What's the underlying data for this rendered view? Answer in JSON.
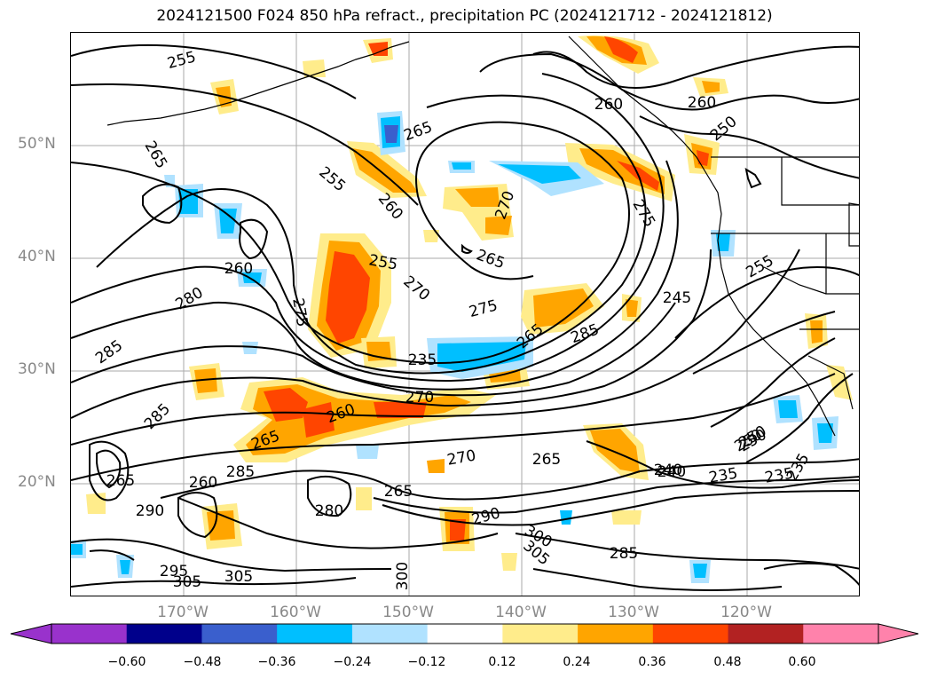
{
  "title": "2024121500 F024 850 hPa refract., precipitation PC (2024121712 - 2024121812)",
  "lat_labels": [
    "50°N",
    "40°N",
    "30°N",
    "20°N"
  ],
  "lon_labels": [
    "170°W",
    "160°W",
    "150°W",
    "140°W",
    "130°W",
    "120°W"
  ],
  "colorbar": {
    "ticks": [
      "−0.60",
      "−0.48",
      "−0.36",
      "−0.24",
      "−0.12",
      "0.12",
      "0.24",
      "0.36",
      "0.48",
      "0.60"
    ],
    "colors": [
      "#9932cc",
      "#00008b",
      "#3a5fcd",
      "#00bfff",
      "#b0e2ff",
      "#ffffff",
      "#ffec8b",
      "#ffa500",
      "#ff4500",
      "#b22222",
      "#ff82ab"
    ]
  },
  "contour_labels": [
    "255",
    "265",
    "255",
    "260",
    "265",
    "270",
    "265",
    "260",
    "250",
    "255",
    "270",
    "275",
    "280",
    "285",
    "285",
    "285",
    "275",
    "250",
    "235",
    "270",
    "265",
    "260",
    "265",
    "260",
    "275",
    "255",
    "245",
    "270",
    "265",
    "250",
    "235",
    "235",
    "240",
    "260",
    "285",
    "290",
    "295",
    "305",
    "305",
    "280",
    "265",
    "290",
    "300",
    "305",
    "300",
    "285",
    "265",
    "260",
    "250",
    "240",
    "235"
  ],
  "colors": {
    "grid": "#aaaaaa",
    "coast": "#000000",
    "contour": "#000000",
    "label_gray": "#888888"
  }
}
